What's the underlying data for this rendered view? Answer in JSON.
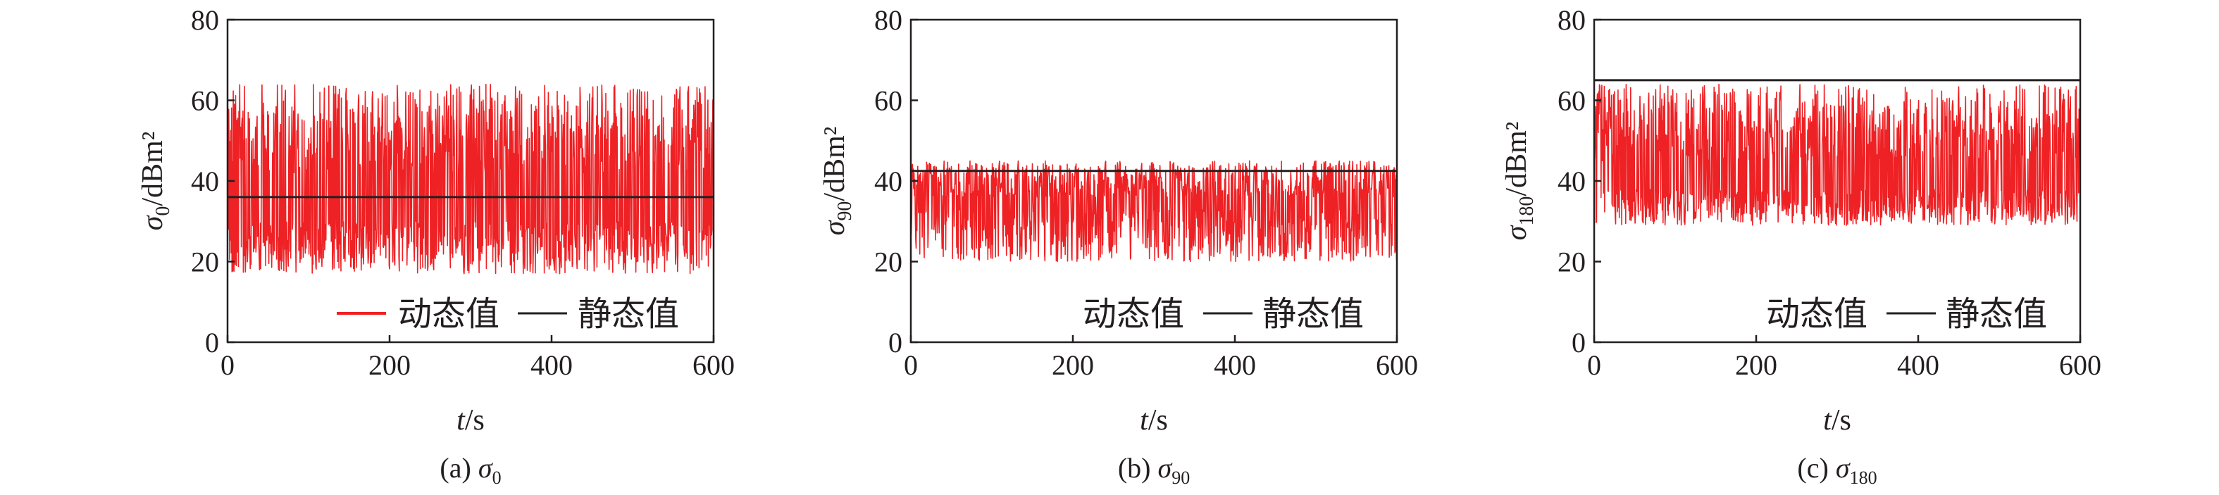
{
  "chart_data": [
    {
      "type": "line",
      "caption_prefix": "(a)",
      "caption_symbol": "σ",
      "caption_sub": "0",
      "ylabel_symbol": "σ",
      "ylabel_sub": "0",
      "ylabel_unit": "/dBm²",
      "xlabel_var": "t",
      "xlabel_unit": "/s",
      "xlim": [
        0,
        600
      ],
      "ylim": [
        0,
        80
      ],
      "xticks": [
        "0",
        "200",
        "400",
        "600"
      ],
      "yticks": [
        "0",
        "20",
        "40",
        "60",
        "80"
      ],
      "legend_position": "bottom-right",
      "series": [
        {
          "name": "动态值",
          "color": "#ee2124",
          "dynamic": {
            "low": [
              17,
              30
            ],
            "high": [
              42,
              64
            ],
            "hi_prob": 0.5,
            "seed": 11
          }
        },
        {
          "name": "静态值",
          "color": "#231f20",
          "static_value": 36
        }
      ]
    },
    {
      "type": "line",
      "caption_prefix": "(b)",
      "caption_symbol": "σ",
      "caption_sub": "90",
      "ylabel_symbol": "σ",
      "ylabel_sub": "90",
      "ylabel_unit": "/dBm²",
      "xlabel_var": "t",
      "xlabel_unit": "/s",
      "xlim": [
        0,
        600
      ],
      "ylim": [
        0,
        80
      ],
      "xticks": [
        "0",
        "200",
        "400",
        "600"
      ],
      "yticks": [
        "0",
        "20",
        "40",
        "60",
        "80"
      ],
      "legend_position": "bottom-right",
      "series": [
        {
          "name": "动态值",
          "color": "#ee2124",
          "dynamic": {
            "low": [
              20,
              33
            ],
            "high": [
              36,
              45
            ],
            "hi_prob": 0.55,
            "seed": 23
          }
        },
        {
          "name": "静态值",
          "color": "#231f20",
          "static_value": 42.5
        }
      ]
    },
    {
      "type": "line",
      "caption_prefix": "(c)",
      "caption_symbol": "σ",
      "caption_sub": "180",
      "ylabel_symbol": "σ",
      "ylabel_sub": "180",
      "ylabel_unit": "/dBm²",
      "xlabel_var": "t",
      "xlabel_unit": "/s",
      "xlim": [
        0,
        600
      ],
      "ylim": [
        0,
        80
      ],
      "xticks": [
        "0",
        "200",
        "400",
        "600"
      ],
      "yticks": [
        "0",
        "20",
        "40",
        "60",
        "80"
      ],
      "legend_position": "bottom-right",
      "series": [
        {
          "name": "动态值",
          "color": "#ee2124",
          "dynamic": {
            "low": [
              29,
              38
            ],
            "high": [
              45,
              64
            ],
            "hi_prob": 0.5,
            "seed": 37
          }
        },
        {
          "name": "静态值",
          "color": "#231f20",
          "static_value": 65
        }
      ]
    }
  ]
}
